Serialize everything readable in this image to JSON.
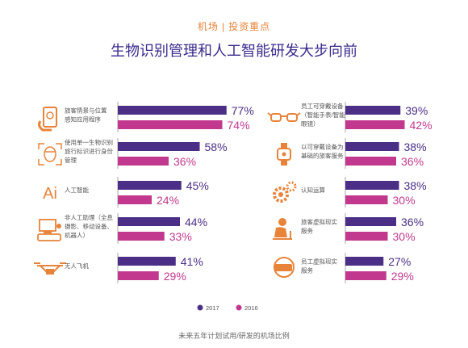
{
  "header": {
    "left": "机场",
    "right": "投资重点"
  },
  "title": "生物识别管理和人工智能研发大步向前",
  "footer": "未来五年计划试用/研发的机场比例",
  "colors": {
    "s2017": "#4b2e86",
    "s2016": "#c2388e",
    "icon": "#e8833a",
    "axis": "#aaaaaa",
    "text": "#555555"
  },
  "chart_data": {
    "type": "bar",
    "orientation": "horizontal",
    "unit": "%",
    "legend": {
      "position": "bottom-center",
      "items": [
        {
          "name": "2017",
          "color": "#4b2e86"
        },
        {
          "name": "2016",
          "color": "#c2388e"
        }
      ]
    },
    "groups": [
      {
        "icon": "phone-passenger-icon",
        "label": [
          "旅客情景与位置",
          "感知应用程序"
        ],
        "v2017": 77,
        "v2016": 74
      },
      {
        "icon": "face-scan-icon",
        "label": [
          "使用单一生物识别",
          "旅行标识进行身份",
          "管理"
        ],
        "v2017": 58,
        "v2016": 36
      },
      {
        "icon": "ai-icon",
        "label": [
          "人工智能"
        ],
        "v2017": 45,
        "v2016": 24
      },
      {
        "icon": "robot-icon",
        "label": [
          "非人工助理（全息",
          "摄影、移动设备、",
          "机器人）"
        ],
        "v2017": 44,
        "v2016": 33
      },
      {
        "icon": "drone-icon",
        "label": [
          "无人飞机"
        ],
        "v2017": 41,
        "v2016": 29
      },
      {
        "icon": "smart-glasses-icon",
        "label": [
          "员工可穿戴设备",
          "（智能手表/智能",
          "眼镜）"
        ],
        "v2017": 39,
        "v2016": 42
      },
      {
        "icon": "smartwatch-icon",
        "label": [
          "以可穿戴设备为",
          "基础的旅客服务"
        ],
        "v2017": 38,
        "v2016": 36
      },
      {
        "icon": "gears-icon",
        "label": [
          "认知运算"
        ],
        "v2017": 38,
        "v2016": 30
      },
      {
        "icon": "vr-passenger-icon",
        "label": [
          "旅客虚拟现实",
          "服务"
        ],
        "v2017": 36,
        "v2016": 30
      },
      {
        "icon": "vr-headset-icon",
        "label": [
          "员工虚拟现实",
          "服务"
        ],
        "v2017": 27,
        "v2016": 29
      }
    ]
  }
}
